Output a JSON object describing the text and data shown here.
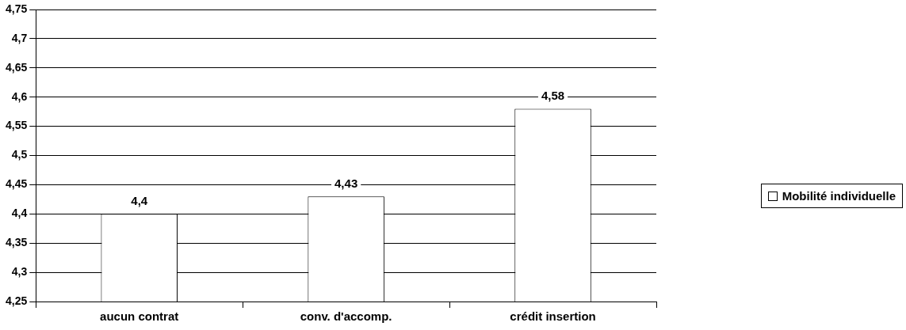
{
  "chart_data": {
    "type": "bar",
    "categories": [
      "aucun contrat",
      "conv. d'accomp.",
      "crédit insertion"
    ],
    "series": [
      {
        "name": "Mobilité individuelle",
        "color": "#ffffff",
        "values": [
          4.4,
          4.43,
          4.58
        ],
        "value_labels": [
          "4,4",
          "4,43",
          "4,58"
        ]
      }
    ],
    "ylim": [
      4.25,
      4.75
    ],
    "yticks": [
      {
        "value": 4.25,
        "label": "4,25"
      },
      {
        "value": 4.3,
        "label": "4,3"
      },
      {
        "value": 4.35,
        "label": "4,35"
      },
      {
        "value": 4.4,
        "label": "4,4"
      },
      {
        "value": 4.45,
        "label": "4,45"
      },
      {
        "value": 4.5,
        "label": "4,5"
      },
      {
        "value": 4.55,
        "label": "4,55"
      },
      {
        "value": 4.6,
        "label": "4,6"
      },
      {
        "value": 4.65,
        "label": "4,65"
      },
      {
        "value": 4.7,
        "label": "4,7"
      },
      {
        "value": 4.75,
        "label": "4,75"
      }
    ],
    "grid": true,
    "legend": "right"
  }
}
